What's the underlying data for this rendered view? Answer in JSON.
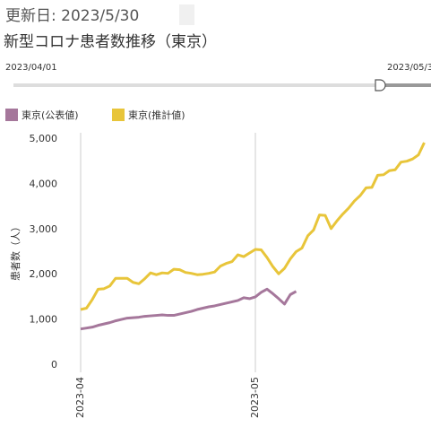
{
  "header": {
    "updated": "更新日: 2023/5/30",
    "title": "新型コロナ患者数推移（東京）"
  },
  "slider": {
    "start": "2023/04/01",
    "end": "2023/05/3"
  },
  "chart_data": {
    "type": "line",
    "y_label": "患者数（人）",
    "categories": [
      "2023-04",
      null,
      null,
      null,
      null,
      null,
      null,
      null,
      null,
      null,
      null,
      null,
      null,
      null,
      null,
      null,
      null,
      null,
      null,
      null,
      null,
      null,
      null,
      null,
      null,
      null,
      null,
      null,
      null,
      null,
      "2023-05",
      null,
      null,
      null,
      null,
      null,
      null,
      null,
      null,
      null,
      null,
      null,
      null,
      null,
      null,
      null,
      null,
      null,
      null,
      null,
      null,
      null,
      null,
      null,
      null,
      null,
      null,
      null,
      null,
      null
    ],
    "series": [
      {
        "name": "東京(公表値)",
        "color": "#a5779b",
        "values": [
          800,
          820,
          840,
          880,
          910,
          940,
          980,
          1010,
          1040,
          1050,
          1060,
          1080,
          1090,
          1100,
          1110,
          1100,
          1100,
          1130,
          1160,
          1190,
          1230,
          1260,
          1290,
          1310,
          1340,
          1370,
          1400,
          1430,
          1490,
          1470,
          1510,
          1610,
          1680,
          1580,
          1470,
          1350,
          1560,
          1630,
          null,
          null,
          null,
          null,
          null,
          null,
          null,
          null,
          null,
          null,
          null,
          null,
          null,
          null,
          null,
          null,
          null,
          null,
          null,
          null,
          null,
          null
        ]
      },
      {
        "name": "東京(推計値)",
        "color": "#e8c53a",
        "values": [
          1230,
          1260,
          1450,
          1680,
          1690,
          1750,
          1920,
          1920,
          1920,
          1830,
          1800,
          1910,
          2040,
          2000,
          2040,
          2030,
          2120,
          2110,
          2050,
          2030,
          2000,
          2010,
          2030,
          2060,
          2190,
          2250,
          2290,
          2440,
          2400,
          2480,
          2560,
          2550,
          2380,
          2180,
          2020,
          2140,
          2350,
          2510,
          2590,
          2860,
          2990,
          3320,
          3310,
          3020,
          3190,
          3340,
          3470,
          3630,
          3750,
          3920,
          3930,
          4200,
          4210,
          4300,
          4320,
          4490,
          4510,
          4560,
          4650,
          4920
        ]
      }
    ],
    "ylim": [
      0,
      5000
    ],
    "yticks": [
      0,
      {
        "value": 1000,
        "label": "1,000"
      },
      {
        "value": 2000,
        "label": "2,000"
      },
      {
        "value": 3000,
        "label": "3,000"
      },
      {
        "value": 4000,
        "label": "4,000"
      },
      {
        "value": 5000,
        "label": "5,000"
      }
    ],
    "grid": true
  }
}
